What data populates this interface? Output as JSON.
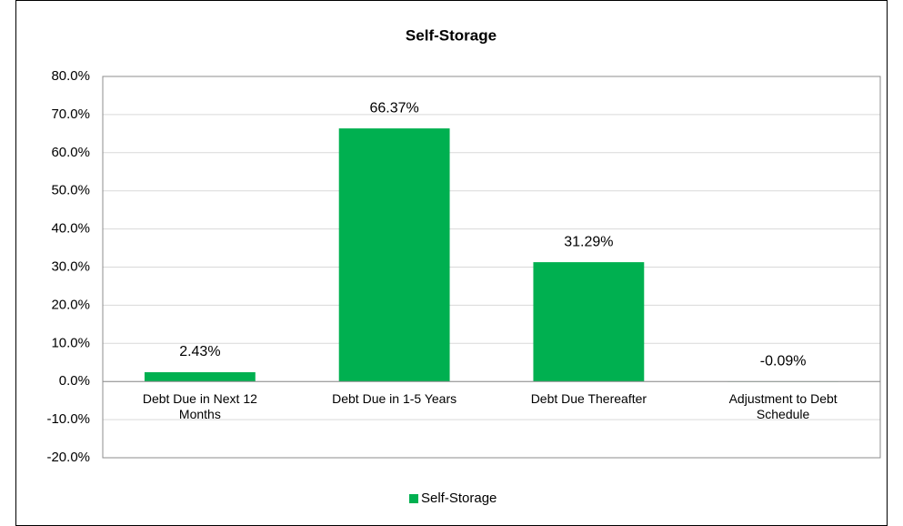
{
  "chart_data": {
    "type": "bar",
    "title": "Self-Storage",
    "categories": [
      "Debt Due in Next 12 Months",
      "Debt Due in 1-5 Years",
      "Debt Due Thereafter",
      "Adjustment to Debt Schedule"
    ],
    "series": [
      {
        "name": "Self-Storage",
        "color": "#00b050",
        "values": [
          2.43,
          66.37,
          31.29,
          -0.09
        ],
        "value_labels": [
          "2.43%",
          "66.37%",
          "31.29%",
          "-0.09%"
        ]
      }
    ],
    "ylim": [
      -20,
      80
    ],
    "yticks": [
      {
        "value": -20,
        "label": "-20.0%"
      },
      {
        "value": -10,
        "label": "-10.0%"
      },
      {
        "value": 0,
        "label": "0.0%"
      },
      {
        "value": 10,
        "label": "10.0%"
      },
      {
        "value": 20,
        "label": "20.0%"
      },
      {
        "value": 30,
        "label": "30.0%"
      },
      {
        "value": 40,
        "label": "40.0%"
      },
      {
        "value": 50,
        "label": "50.0%"
      },
      {
        "value": 60,
        "label": "60.0%"
      },
      {
        "value": 70,
        "label": "70.0%"
      },
      {
        "value": 80,
        "label": "80.0%"
      }
    ],
    "grid": true,
    "legend": "bottom"
  }
}
